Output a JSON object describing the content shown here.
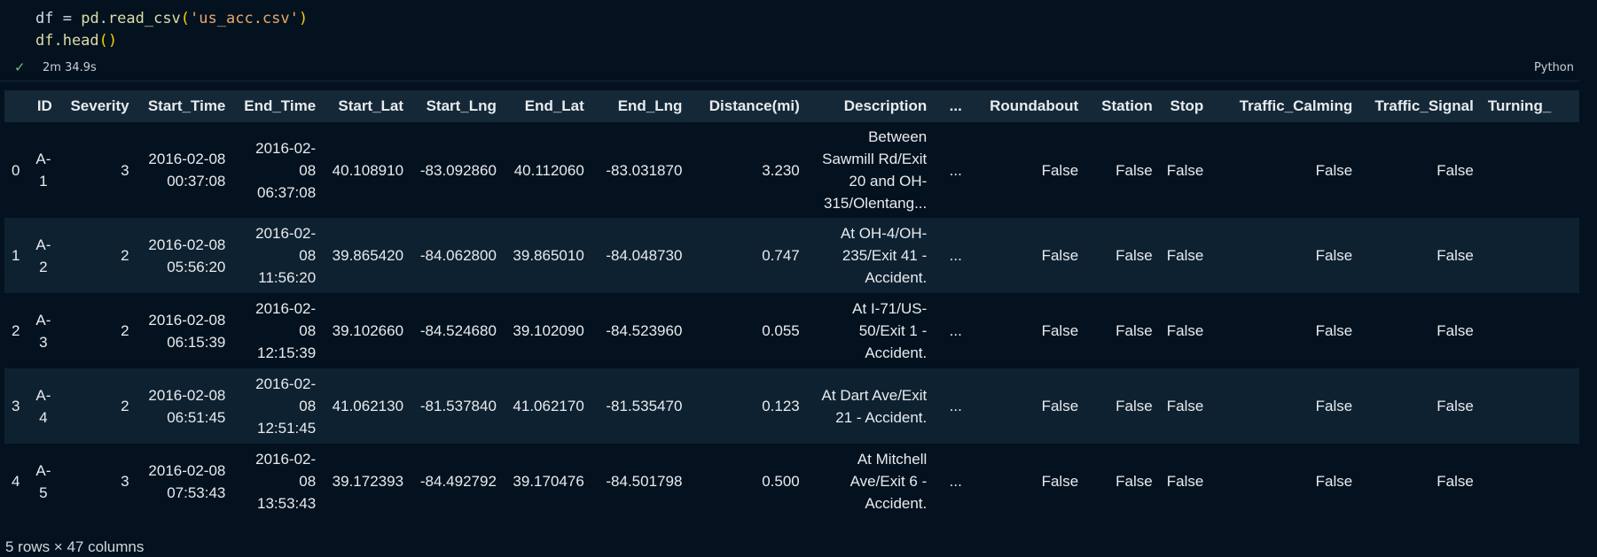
{
  "code": {
    "line1": {
      "lhs": "df",
      "op": " = ",
      "call": "pd.read_csv",
      "open": "(",
      "arg": "'us_acc.csv'",
      "close": ")"
    },
    "line2": {
      "obj": "df.head",
      "parens": "()"
    }
  },
  "status": {
    "check_icon": "check-icon",
    "duration": "2m 34.9s",
    "language": "Python"
  },
  "table": {
    "columns": [
      "",
      "ID",
      "Severity",
      "Start_Time",
      "End_Time",
      "Start_Lat",
      "Start_Lng",
      "End_Lat",
      "End_Lng",
      "Distance(mi)",
      "Description",
      "...",
      "Roundabout",
      "Station",
      "Stop",
      "Traffic_Calming",
      "Traffic_Signal",
      "Turning_"
    ],
    "rows": [
      [
        "0",
        "A-1",
        "3",
        "2016-02-08 00:37:08",
        "2016-02-08 06:37:08",
        "40.108910",
        "-83.092860",
        "40.112060",
        "-83.031870",
        "3.230",
        "Between Sawmill Rd/Exit 20 and OH-315/Olentang...",
        "...",
        "False",
        "False",
        "False",
        "False",
        "False",
        ""
      ],
      [
        "1",
        "A-2",
        "2",
        "2016-02-08 05:56:20",
        "2016-02-08 11:56:20",
        "39.865420",
        "-84.062800",
        "39.865010",
        "-84.048730",
        "0.747",
        "At OH-4/OH-235/Exit 41 - Accident.",
        "...",
        "False",
        "False",
        "False",
        "False",
        "False",
        ""
      ],
      [
        "2",
        "A-3",
        "2",
        "2016-02-08 06:15:39",
        "2016-02-08 12:15:39",
        "39.102660",
        "-84.524680",
        "39.102090",
        "-84.523960",
        "0.055",
        "At I-71/US-50/Exit 1 - Accident.",
        "...",
        "False",
        "False",
        "False",
        "False",
        "False",
        ""
      ],
      [
        "3",
        "A-4",
        "2",
        "2016-02-08 06:51:45",
        "2016-02-08 12:51:45",
        "41.062130",
        "-81.537840",
        "41.062170",
        "-81.535470",
        "0.123",
        "At Dart Ave/Exit 21 - Accident.",
        "...",
        "False",
        "False",
        "False",
        "False",
        "False",
        ""
      ],
      [
        "4",
        "A-5",
        "3",
        "2016-02-08 07:53:43",
        "2016-02-08 13:53:43",
        "39.172393",
        "-84.492792",
        "39.170476",
        "-84.501798",
        "0.500",
        "At Mitchell Ave/Exit 6 - Accident.",
        "...",
        "False",
        "False",
        "False",
        "False",
        "False",
        ""
      ]
    ]
  },
  "footer": "5 rows × 47 columns",
  "colors": {
    "background": "#04121f",
    "header_row": "#142838",
    "alt_row": "#0e2131",
    "string": "#e8a86a",
    "paren": "#f5d000",
    "check": "#6fc27a"
  }
}
